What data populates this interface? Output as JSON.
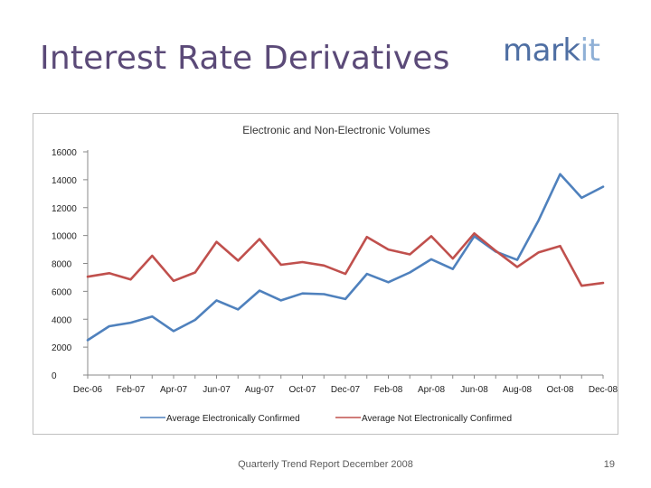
{
  "slide": {
    "title": "Interest Rate Derivatives",
    "logo_main": "mark",
    "logo_accent": "it",
    "footer": "Quarterly Trend Report December 2008",
    "page_number": "19"
  },
  "colors": {
    "title": "#5b4a78",
    "logo": "#4f6fa3",
    "series_electronic": "#4f81bd",
    "series_non_electronic": "#c0504d"
  },
  "chart_data": {
    "type": "line",
    "title": "Electronic and Non-Electronic Volumes",
    "xlabel": "",
    "ylabel": "",
    "ylim": [
      0,
      16000
    ],
    "yticks": [
      0,
      2000,
      4000,
      6000,
      8000,
      10000,
      12000,
      14000,
      16000
    ],
    "x": [
      "Dec-06",
      "Jan-07",
      "Feb-07",
      "Mar-07",
      "Apr-07",
      "May-07",
      "Jun-07",
      "Jul-07",
      "Aug-07",
      "Sep-07",
      "Oct-07",
      "Nov-07",
      "Dec-07",
      "Jan-08",
      "Feb-08",
      "Mar-08",
      "Apr-08",
      "May-08",
      "Jun-08",
      "Jul-08",
      "Aug-08",
      "Sep-08",
      "Oct-08",
      "Nov-08",
      "Dec-08"
    ],
    "x_tick_labels": [
      "Dec-06",
      "Feb-07",
      "Apr-07",
      "Jun-07",
      "Aug-07",
      "Oct-07",
      "Dec-07",
      "Feb-08",
      "Apr-08",
      "Jun-08",
      "Aug-08",
      "Oct-08",
      "Dec-08"
    ],
    "grid": true,
    "legend_position": "bottom",
    "series": [
      {
        "name": "Average Electronically Confirmed",
        "values": [
          2500,
          3500,
          3750,
          4200,
          3150,
          3950,
          5350,
          4700,
          6050,
          5350,
          5850,
          5800,
          5450,
          7250,
          6650,
          7350,
          8300,
          7600,
          9950,
          8850,
          8250,
          11100,
          14400,
          12700,
          13500
        ]
      },
      {
        "name": "Average Not Electronically Confirmed",
        "values": [
          7050,
          7300,
          6850,
          8550,
          6750,
          7350,
          9550,
          8200,
          9750,
          7900,
          8100,
          7850,
          7250,
          9900,
          9000,
          8650,
          9950,
          8350,
          10150,
          8900,
          7750,
          8800,
          9250,
          6400,
          6600
        ]
      }
    ]
  }
}
